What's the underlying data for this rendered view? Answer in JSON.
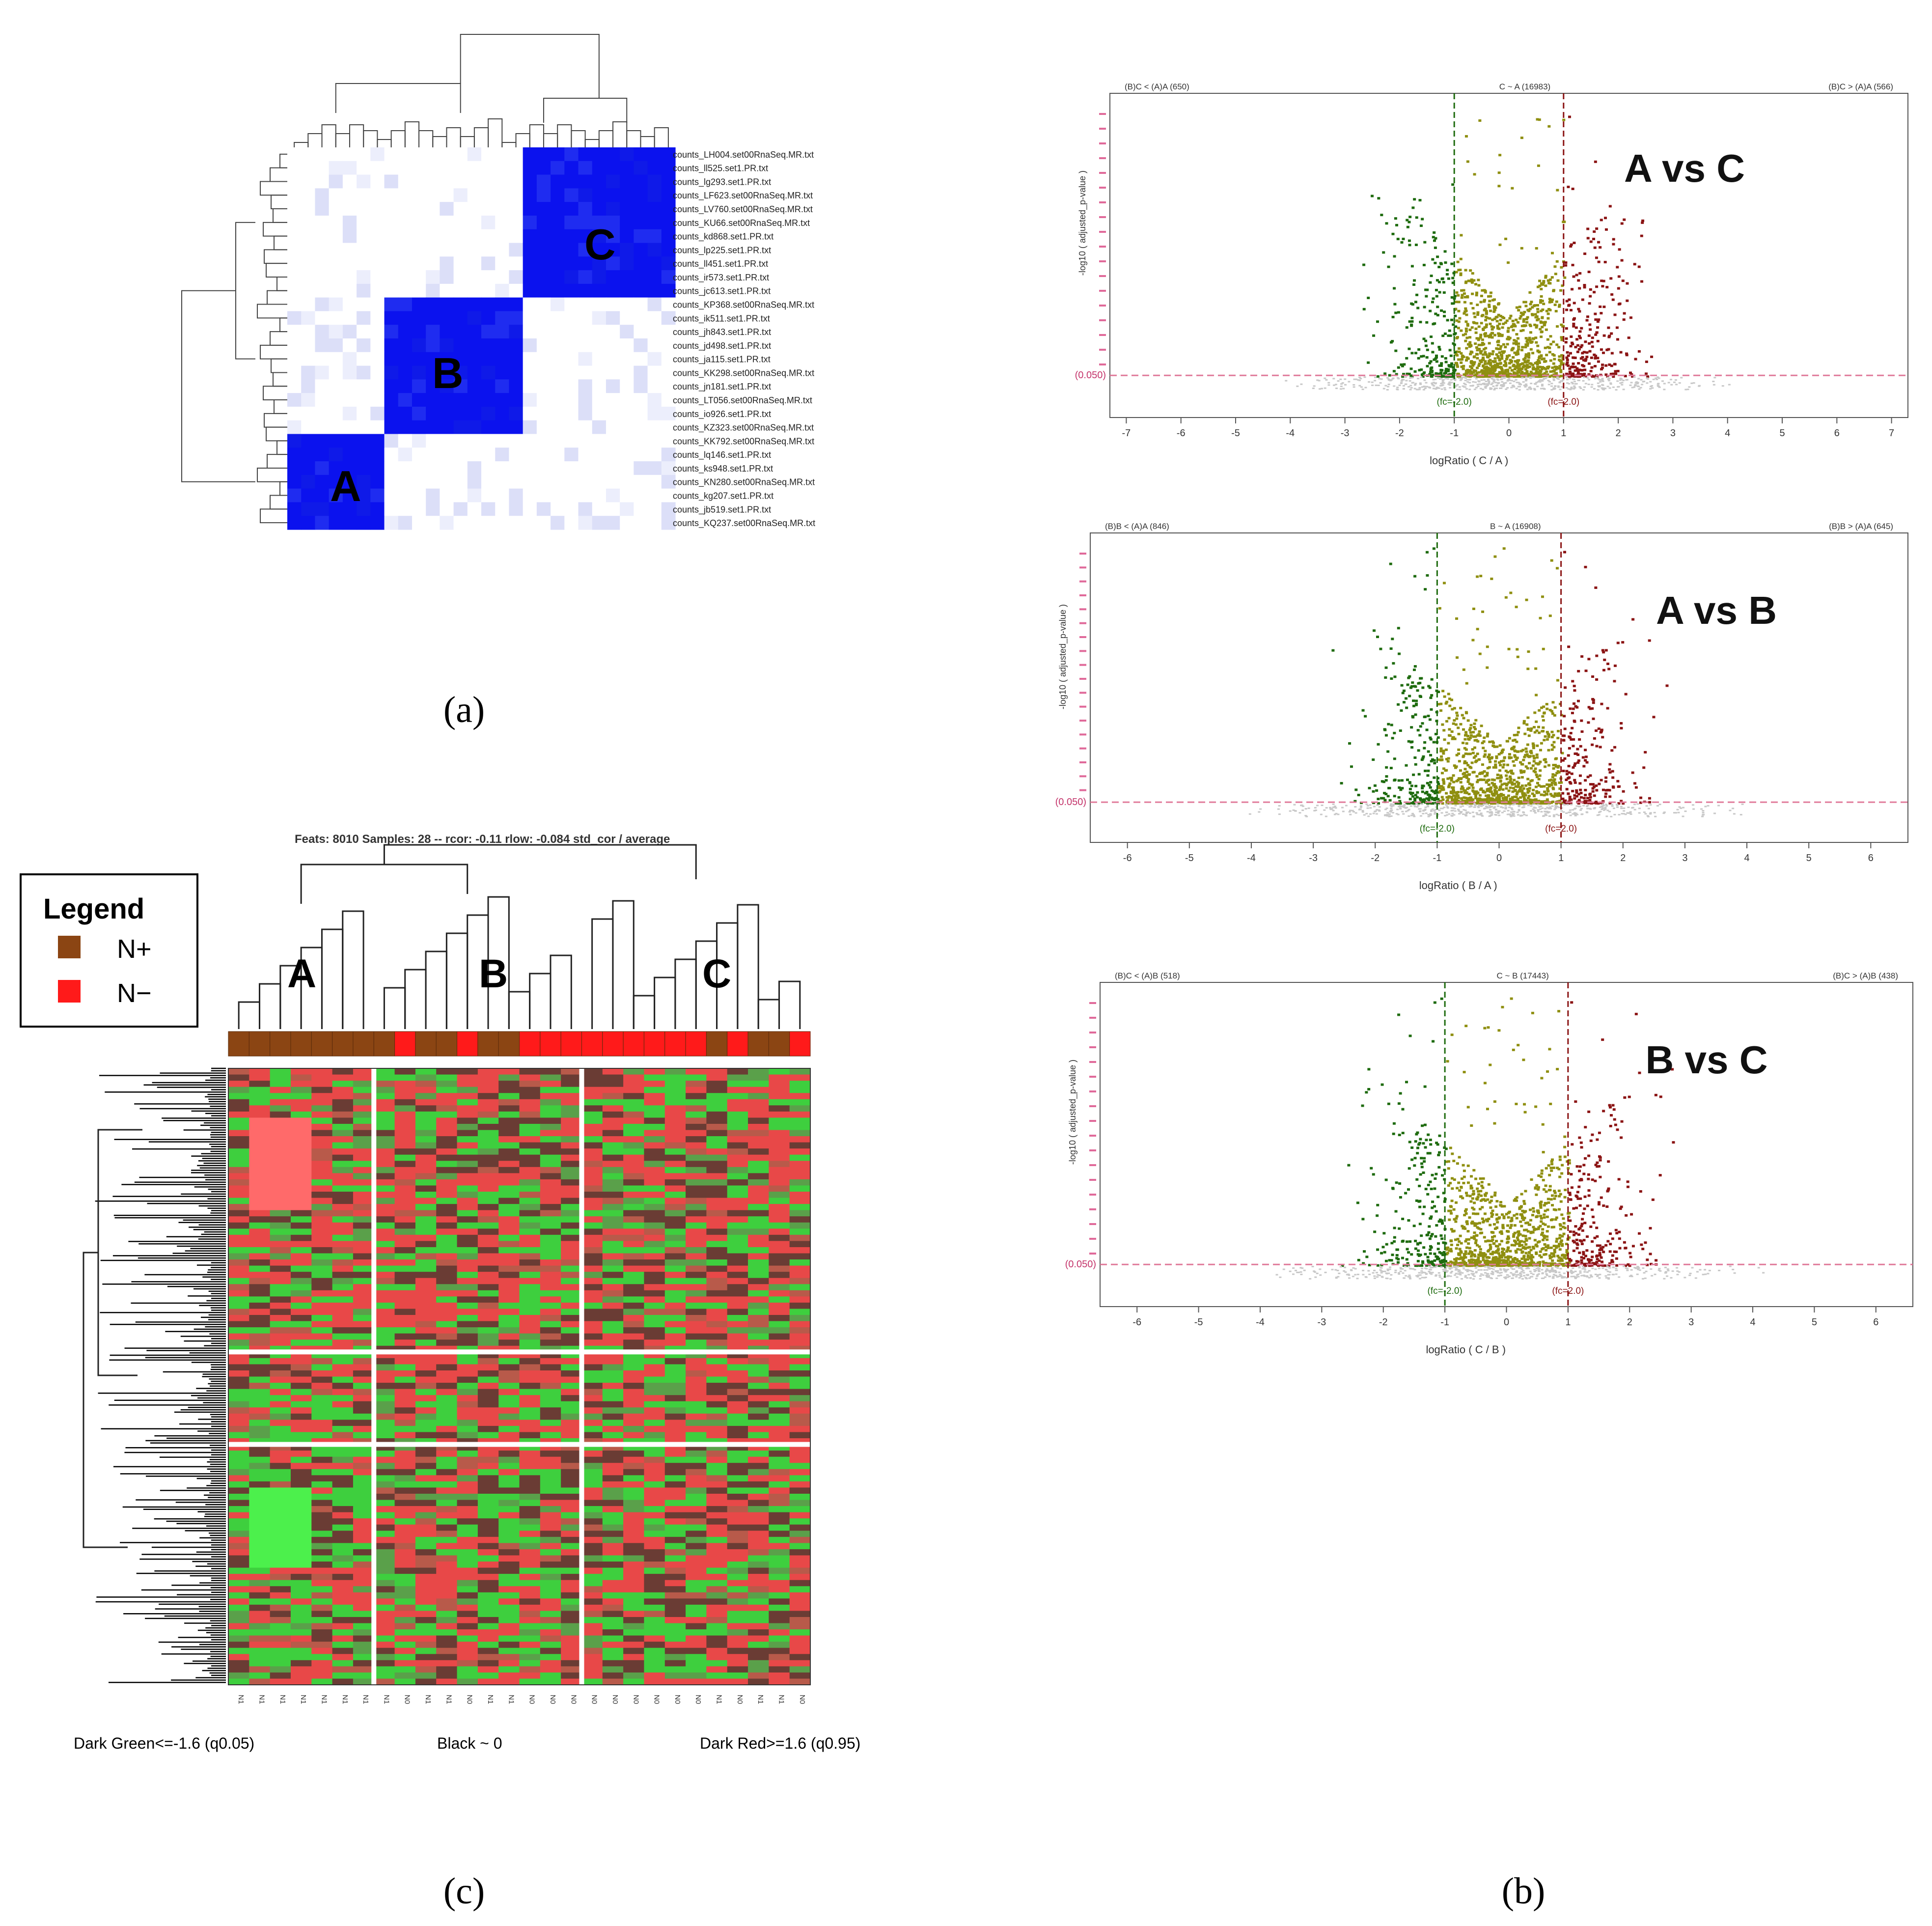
{
  "panel_labels": {
    "a": "(a)",
    "b": "(b)",
    "c": "(c)"
  },
  "chart_data": [
    {
      "id": "a",
      "type": "heatmap",
      "description_kind": "sample-correlation",
      "cluster_labels": [
        "A",
        "B",
        "C"
      ],
      "row_labels": [
        "counts_LH004.set00RnaSeq.MR.txt",
        "counts_ll525.set1.PR.txt",
        "counts_lg293.set1.PR.txt",
        "counts_LF623.set00RnaSeq.MR.txt",
        "counts_LV760.set00RnaSeq.MR.txt",
        "counts_KU66.set00RnaSeq.MR.txt",
        "counts_kd868.set1.PR.txt",
        "counts_lp225.set1.PR.txt",
        "counts_ll451.set1.PR.txt",
        "counts_ir573.set1.PR.txt",
        "counts_jc613.set1.PR.txt",
        "counts_KP368.set00RnaSeq.MR.txt",
        "counts_ik511.set1.PR.txt",
        "counts_jh843.set1.PR.txt",
        "counts_jd498.set1.PR.txt",
        "counts_ja115.set1.PR.txt",
        "counts_KK298.set00RnaSeq.MR.txt",
        "counts_jn181.set1.PR.txt",
        "counts_LT056.set00RnaSeq.MR.txt",
        "counts_io926.set1.PR.txt",
        "counts_KZ323.set00RnaSeq.MR.txt",
        "counts_KK792.set00RnaSeq.MR.txt",
        "counts_lq146.set1.PR.txt",
        "counts_ks948.set1.PR.txt",
        "counts_KN280.set00RnaSeq.MR.txt",
        "counts_kg207.set1.PR.txt",
        "counts_jb519.set1.PR.txt",
        "counts_KQ237.set00RnaSeq.MR.txt"
      ],
      "cluster_sizes": {
        "A": 7,
        "B": 10,
        "C": 11
      },
      "colors": {
        "high": "#0b12ee",
        "mid": "#dcdff8",
        "low": "#ffffff"
      }
    },
    {
      "id": "b1",
      "type": "scatter",
      "title_label": "A vs C",
      "header_left": "(B)C < (A)A (650)",
      "header_center": "C ~ A (16983)",
      "header_right": "(B)C > (A)A (566)",
      "xlabel": "logRatio ( C / A )",
      "ylabel": "-log10 ( adjusted_p-value )",
      "xticks": [
        -7,
        -6,
        -5,
        -4,
        -3,
        -2,
        -1,
        0,
        1,
        2,
        3,
        4,
        5,
        6,
        7
      ],
      "xlim": [
        -7.3,
        7.3
      ],
      "threshold_y_label": "(0.050)",
      "fc_low_label": "(fc=-2.0)",
      "fc_high_label": "(fc=2.0)",
      "fc_thresholds": [
        -1,
        1
      ],
      "colors": {
        "down": "#1e6b0e",
        "mid": "#8f8f10",
        "up": "#8b1414",
        "ns": "#c8c8c8"
      }
    },
    {
      "id": "b2",
      "type": "scatter",
      "title_label": "A vs B",
      "header_left": "(B)B < (A)A (846)",
      "header_center": "B ~ A (16908)",
      "header_right": "(B)B > (A)A (645)",
      "xlabel": "logRatio ( B / A )",
      "ylabel": "-log10 ( adjusted_p-value )",
      "xticks": [
        -6,
        -5,
        -4,
        -3,
        -2,
        -1,
        0,
        1,
        2,
        3,
        4,
        5,
        6
      ],
      "xlim": [
        -6.6,
        6.6
      ],
      "threshold_y_label": "(0.050)",
      "fc_low_label": "(fc=-2.0)",
      "fc_high_label": "(fc=2.0)",
      "fc_thresholds": [
        -1,
        1
      ],
      "colors": {
        "down": "#1e6b0e",
        "mid": "#8f8f10",
        "up": "#8b1414",
        "ns": "#c8c8c8"
      }
    },
    {
      "id": "b3",
      "type": "scatter",
      "title_label": "B vs C",
      "header_left": "(B)C < (A)B (518)",
      "header_center": "C ~ B (17443)",
      "header_right": "(B)C > (A)B (438)",
      "xlabel": "logRatio ( C / B )",
      "ylabel": "-log10 ( adjusted_p-value )",
      "xticks": [
        -6,
        -5,
        -4,
        -3,
        -2,
        -1,
        0,
        1,
        2,
        3,
        4,
        5,
        6
      ],
      "xlim": [
        -6.6,
        6.6
      ],
      "threshold_y_label": "(0.050)",
      "fc_low_label": "(fc=-2.0)",
      "fc_high_label": "(fc=2.0)",
      "fc_thresholds": [
        -1,
        1
      ],
      "colors": {
        "down": "#1e6b0e",
        "mid": "#8f8f10",
        "up": "#8b1414",
        "ns": "#c8c8c8"
      }
    },
    {
      "id": "c",
      "type": "heatmap",
      "description_kind": "gene-expression",
      "title": "Feats: 8010 Samples: 28 -- rcor: -0.11 rlow: -0.084 std_cor / average",
      "legend_title": "Legend",
      "legend_items": [
        {
          "label": "N+",
          "color": "#8b4513"
        },
        {
          "label": "N−",
          "color": "#ff1a1a"
        }
      ],
      "cluster_labels": [
        "A",
        "B",
        "C"
      ],
      "sample_status": [
        "N1",
        "N1",
        "N1",
        "N1",
        "N1",
        "N1",
        "N1",
        "N1",
        "N0",
        "N1",
        "N1",
        "N0",
        "N1",
        "N1",
        "N0",
        "N0",
        "N0",
        "N0",
        "N0",
        "N0",
        "N0",
        "N0",
        "N0",
        "N1",
        "N0",
        "N1",
        "N1",
        "N0"
      ],
      "color_scale": {
        "low": "Dark Green<=-1.6 (q0.05)",
        "mid": "Black ~ 0",
        "high": "Dark Red>=1.6 (q0.95)"
      },
      "colors": {
        "n_plus": "#8b4513",
        "n_minus": "#ff1a1a",
        "green": "#3ecf3e",
        "red": "#e84848",
        "dark": "#6a3c34"
      }
    }
  ]
}
